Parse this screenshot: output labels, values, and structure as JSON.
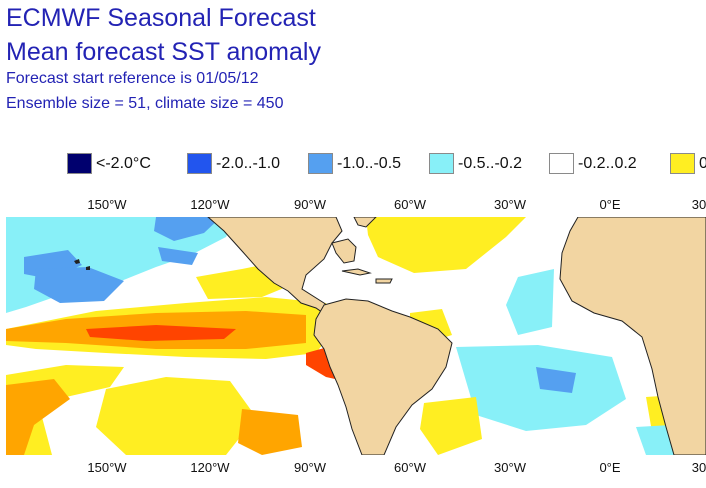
{
  "header": {
    "title_line1": "ECMWF Seasonal Forecast",
    "title_line2": "Mean forecast SST anomaly",
    "subtitle_line1": "Forecast start reference is 01/05/12",
    "subtitle_line2": "Ensemble size = 51, climate size = 450"
  },
  "legend": {
    "items": [
      {
        "label": "<-2.0°C",
        "color": "#00006e"
      },
      {
        "label": "-2.0..-1.0",
        "color": "#2255ee"
      },
      {
        "label": "-1.0..-0.5",
        "color": "#55a0f0"
      },
      {
        "label": "-0.5..-0.2",
        "color": "#88f0f8"
      },
      {
        "label": "-0.2..0.2",
        "color": "#ffffff"
      },
      {
        "label": "0",
        "color": "#ffee22"
      }
    ]
  },
  "axis": {
    "longitude_labels": [
      "150°W",
      "120°W",
      "90°W",
      "60°W",
      "30°W",
      "0°E",
      "30"
    ]
  },
  "colors": {
    "land": "#f2d5a2",
    "ocean_neutral": "#ffffff",
    "coast": "#222222"
  }
}
